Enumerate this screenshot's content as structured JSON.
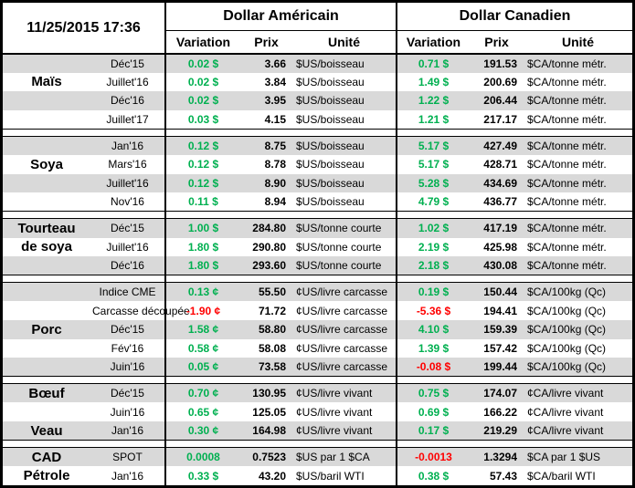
{
  "timestamp": "11/25/2015 17:36",
  "headers": {
    "us": "Dollar Américain",
    "ca": "Dollar Canadien",
    "variation": "Variation",
    "prix": "Prix",
    "unite": "Unité"
  },
  "colors": {
    "positive": "#00B050",
    "negative": "#FF0000",
    "stripe": "#D9D9D9"
  },
  "groups": [
    {
      "name": "Maïs",
      "rows": [
        {
          "label": "",
          "month": "Déc'15",
          "us_var": "0.02 $",
          "us_prix": "3.66",
          "us_unit": "$US/boisseau",
          "ca_var": "0.71 $",
          "ca_prix": "191.53",
          "ca_unit": "$CA/tonne métr."
        },
        {
          "label": "Maïs",
          "month": "Juillet'16",
          "us_var": "0.02 $",
          "us_prix": "3.84",
          "us_unit": "$US/boisseau",
          "ca_var": "1.49 $",
          "ca_prix": "200.69",
          "ca_unit": "$CA/tonne métr."
        },
        {
          "label": "",
          "month": "Déc'16",
          "us_var": "0.02 $",
          "us_prix": "3.95",
          "us_unit": "$US/boisseau",
          "ca_var": "1.22 $",
          "ca_prix": "206.44",
          "ca_unit": "$CA/tonne métr."
        },
        {
          "label": "",
          "month": "Juillet'17",
          "us_var": "0.03 $",
          "us_prix": "4.15",
          "us_unit": "$US/boisseau",
          "ca_var": "1.21 $",
          "ca_prix": "217.17",
          "ca_unit": "$CA/tonne métr."
        }
      ]
    },
    {
      "name": "Soya",
      "rows": [
        {
          "label": "",
          "month": "Jan'16",
          "us_var": "0.12 $",
          "us_prix": "8.75",
          "us_unit": "$US/boisseau",
          "ca_var": "5.17 $",
          "ca_prix": "427.49",
          "ca_unit": "$CA/tonne métr."
        },
        {
          "label": "Soya",
          "month": "Mars'16",
          "us_var": "0.12 $",
          "us_prix": "8.78",
          "us_unit": "$US/boisseau",
          "ca_var": "5.17 $",
          "ca_prix": "428.71",
          "ca_unit": "$CA/tonne métr."
        },
        {
          "label": "",
          "month": "Juillet'16",
          "us_var": "0.12 $",
          "us_prix": "8.90",
          "us_unit": "$US/boisseau",
          "ca_var": "5.28 $",
          "ca_prix": "434.69",
          "ca_unit": "$CA/tonne métr."
        },
        {
          "label": "",
          "month": "Nov'16",
          "us_var": "0.11 $",
          "us_prix": "8.94",
          "us_unit": "$US/boisseau",
          "ca_var": "4.79 $",
          "ca_prix": "436.77",
          "ca_unit": "$CA/tonne métr."
        }
      ]
    },
    {
      "name": "Tourteau de soya",
      "rows": [
        {
          "label": "Tourteau",
          "month": "Déc'15",
          "us_var": "1.00 $",
          "us_prix": "284.80",
          "us_unit": "$US/tonne courte",
          "ca_var": "1.02 $",
          "ca_prix": "417.19",
          "ca_unit": "$CA/tonne métr."
        },
        {
          "label": "de soya",
          "month": "Juillet'16",
          "us_var": "1.80 $",
          "us_prix": "290.80",
          "us_unit": "$US/tonne courte",
          "ca_var": "2.19 $",
          "ca_prix": "425.98",
          "ca_unit": "$CA/tonne métr."
        },
        {
          "label": "",
          "month": "Déc'16",
          "us_var": "1.80 $",
          "us_prix": "293.60",
          "us_unit": "$US/tonne courte",
          "ca_var": "2.18 $",
          "ca_prix": "430.08",
          "ca_unit": "$CA/tonne métr."
        }
      ]
    },
    {
      "name": "Porc",
      "rows": [
        {
          "label": "",
          "month": "Indice CME",
          "us_var": "0.13 ¢",
          "us_prix": "55.50",
          "us_unit": "¢US/livre carcasse",
          "ca_var": "0.19 $",
          "ca_prix": "150.44",
          "ca_unit": "$CA/100kg (Qc)"
        },
        {
          "label": "",
          "month": "Carcasse découpée",
          "us_var": "-1.90 ¢",
          "us_prix": "71.72",
          "us_unit": "¢US/livre carcasse",
          "ca_var": "-5.36 $",
          "ca_prix": "194.41",
          "ca_unit": "$CA/100kg (Qc)"
        },
        {
          "label": "Porc",
          "month": "Déc'15",
          "us_var": "1.58 ¢",
          "us_prix": "58.80",
          "us_unit": "¢US/livre carcasse",
          "ca_var": "4.10 $",
          "ca_prix": "159.39",
          "ca_unit": "$CA/100kg (Qc)"
        },
        {
          "label": "",
          "month": "Fév'16",
          "us_var": "0.58 ¢",
          "us_prix": "58.08",
          "us_unit": "¢US/livre carcasse",
          "ca_var": "1.39 $",
          "ca_prix": "157.42",
          "ca_unit": "$CA/100kg (Qc)"
        },
        {
          "label": "",
          "month": "Juin'16",
          "us_var": "0.05 ¢",
          "us_prix": "73.58",
          "us_unit": "¢US/livre carcasse",
          "ca_var": "-0.08 $",
          "ca_prix": "199.44",
          "ca_unit": "$CA/100kg (Qc)"
        }
      ]
    },
    {
      "name": "Bœuf / Veau",
      "rows": [
        {
          "label": "Bœuf",
          "month": "Déc'15",
          "us_var": "0.70 ¢",
          "us_prix": "130.95",
          "us_unit": "¢US/livre vivant",
          "ca_var": "0.75 $",
          "ca_prix": "174.07",
          "ca_unit": "¢CA/livre vivant"
        },
        {
          "label": "",
          "month": "Juin'16",
          "us_var": "0.65 ¢",
          "us_prix": "125.05",
          "us_unit": "¢US/livre vivant",
          "ca_var": "0.69 $",
          "ca_prix": "166.22",
          "ca_unit": "¢CA/livre vivant"
        },
        {
          "label": "Veau",
          "month": "Jan'16",
          "us_var": "0.30 ¢",
          "us_prix": "164.98",
          "us_unit": "¢US/livre vivant",
          "ca_var": "0.17 $",
          "ca_prix": "219.29",
          "ca_unit": "¢CA/livre vivant"
        }
      ]
    },
    {
      "name": "CAD / Pétrole",
      "rows": [
        {
          "label": "CAD",
          "month": "SPOT",
          "us_var": "0.0008",
          "us_prix": "0.7523",
          "us_unit": "$US par 1 $CA",
          "ca_var": "-0.0013",
          "ca_prix": "1.3294",
          "ca_unit": "$CA par 1 $US"
        },
        {
          "label": "Pétrole",
          "month": "Jan'16",
          "us_var": "0.33 $",
          "us_prix": "43.20",
          "us_unit": "$US/baril WTI",
          "ca_var": "0.38 $",
          "ca_prix": "57.43",
          "ca_unit": "$CA/baril WTI"
        }
      ]
    }
  ]
}
